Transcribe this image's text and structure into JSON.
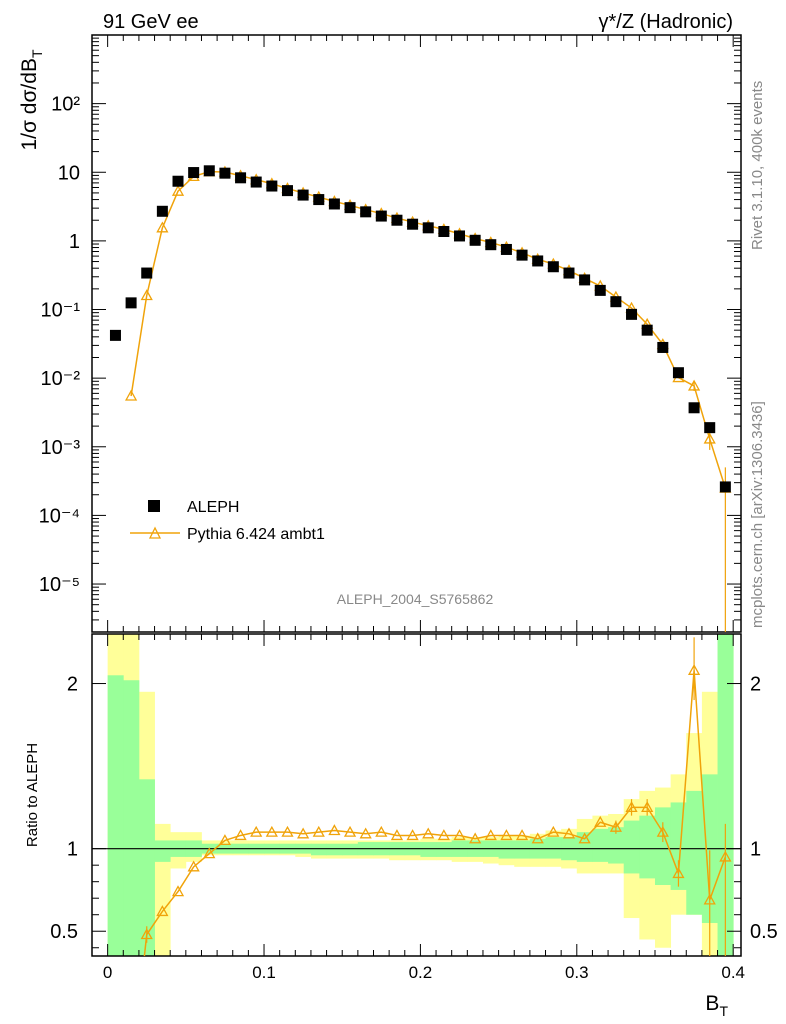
{
  "header": {
    "left_label": "91 GeV ee",
    "right_label": "γ*/Z (Hadronic)"
  },
  "side_text": {
    "rivet": "Rivet 3.1.10,  400k events",
    "mcplots": "mcplots.cern.ch [arXiv:1306.3436]"
  },
  "analysis_id": "ALEPH_2004_S5765862",
  "colors": {
    "data": "#000000",
    "mc": "#f0a30a",
    "band_inner": "#99ff99",
    "band_outer": "#ffff99"
  },
  "chart_data": [
    {
      "type": "scatter",
      "ylabel": "1/σ  dσ/dB_T",
      "yscale": "log",
      "xlim": [
        -0.01,
        0.405
      ],
      "ylim": [
        2e-06,
        1000
      ],
      "y_ticks": [
        "10⁻⁵",
        "10⁻⁴",
        "10⁻³",
        "10⁻²",
        "10⁻¹",
        "1",
        "10",
        "10²"
      ],
      "legend": {
        "placement": "bottom-left",
        "entries": [
          "ALEPH",
          "Pythia 6.424 ambt1"
        ]
      },
      "x": [
        0.005,
        0.015,
        0.025,
        0.035,
        0.045,
        0.055,
        0.065,
        0.075,
        0.085,
        0.095,
        0.105,
        0.115,
        0.125,
        0.135,
        0.145,
        0.155,
        0.165,
        0.175,
        0.185,
        0.195,
        0.205,
        0.215,
        0.225,
        0.235,
        0.245,
        0.255,
        0.265,
        0.275,
        0.285,
        0.295,
        0.305,
        0.315,
        0.325,
        0.335,
        0.345,
        0.355,
        0.365,
        0.375,
        0.385,
        0.395
      ],
      "series": [
        {
          "name": "ALEPH",
          "values": [
            0.042,
            0.125,
            0.34,
            2.7,
            7.4,
            9.9,
            10.5,
            9.7,
            8.3,
            7.2,
            6.3,
            5.4,
            4.65,
            4.0,
            3.45,
            3.05,
            2.65,
            2.3,
            2.0,
            1.75,
            1.55,
            1.37,
            1.18,
            1.02,
            0.88,
            0.75,
            0.62,
            0.51,
            0.42,
            0.34,
            0.27,
            0.19,
            0.13,
            0.085,
            0.05,
            0.028,
            0.012,
            0.0037,
            0.0019,
            0.00026
          ]
        },
        {
          "name": "Pythia 6.424 ambt1",
          "values": [
            null,
            0.0055,
            0.16,
            1.55,
            5.3,
            8.7,
            10.2,
            10.1,
            8.9,
            7.8,
            6.8,
            5.8,
            5.0,
            4.35,
            3.75,
            3.3,
            2.85,
            2.5,
            2.15,
            1.88,
            1.66,
            1.47,
            1.27,
            1.08,
            0.95,
            0.81,
            0.67,
            0.54,
            0.46,
            0.37,
            0.285,
            0.22,
            0.152,
            0.105,
            0.061,
            0.031,
            0.0102,
            0.0077,
            0.0013,
            0.00025
          ]
        }
      ]
    },
    {
      "type": "line",
      "xlabel": "B_T",
      "ylabel": "Ratio to ALEPH",
      "xlim": [
        -0.01,
        0.405
      ],
      "ylim": [
        0.35,
        2.3
      ],
      "x_ticks": [
        "0",
        "0.1",
        "0.2",
        "0.3",
        "0.4"
      ],
      "y_ticks": [
        "0.5",
        "1",
        "2"
      ],
      "bands": {
        "x_edges": [
          0.0,
          0.01,
          0.02,
          0.03,
          0.04,
          0.05,
          0.06,
          0.07,
          0.08,
          0.09,
          0.1,
          0.11,
          0.12,
          0.13,
          0.14,
          0.15,
          0.16,
          0.17,
          0.18,
          0.19,
          0.2,
          0.21,
          0.22,
          0.23,
          0.24,
          0.25,
          0.26,
          0.27,
          0.28,
          0.29,
          0.3,
          0.31,
          0.32,
          0.33,
          0.34,
          0.35,
          0.36,
          0.37,
          0.38,
          0.39,
          0.4
        ],
        "inner_lo": [
          0.35,
          0.35,
          0.35,
          0.92,
          0.95,
          0.95,
          0.97,
          0.97,
          0.97,
          0.97,
          0.97,
          0.97,
          0.97,
          0.96,
          0.96,
          0.96,
          0.96,
          0.96,
          0.96,
          0.96,
          0.95,
          0.95,
          0.95,
          0.95,
          0.95,
          0.94,
          0.94,
          0.94,
          0.94,
          0.93,
          0.92,
          0.92,
          0.91,
          0.85,
          0.82,
          0.78,
          0.75,
          0.6,
          0.55,
          0.35
        ],
        "inner_hi": [
          2.05,
          2.02,
          1.42,
          1.05,
          1.05,
          1.05,
          1.03,
          1.03,
          1.03,
          1.03,
          1.03,
          1.03,
          1.03,
          1.03,
          1.03,
          1.03,
          1.04,
          1.04,
          1.04,
          1.04,
          1.04,
          1.04,
          1.05,
          1.05,
          1.05,
          1.05,
          1.05,
          1.06,
          1.07,
          1.07,
          1.1,
          1.12,
          1.13,
          1.17,
          1.2,
          1.25,
          1.28,
          1.35,
          1.45,
          2.3
        ],
        "outer_lo": [
          0.35,
          0.35,
          0.35,
          0.35,
          0.88,
          0.92,
          0.96,
          0.96,
          0.96,
          0.96,
          0.96,
          0.96,
          0.95,
          0.94,
          0.94,
          0.94,
          0.94,
          0.94,
          0.93,
          0.93,
          0.93,
          0.93,
          0.92,
          0.92,
          0.91,
          0.9,
          0.89,
          0.89,
          0.89,
          0.88,
          0.85,
          0.85,
          0.85,
          0.58,
          0.45,
          0.4,
          0.6,
          0.6,
          0.35,
          0.35
        ],
        "outer_hi": [
          2.3,
          2.3,
          1.95,
          1.15,
          1.1,
          1.1,
          1.05,
          1.05,
          1.05,
          1.05,
          1.05,
          1.05,
          1.05,
          1.05,
          1.05,
          1.05,
          1.05,
          1.05,
          1.05,
          1.05,
          1.06,
          1.06,
          1.07,
          1.07,
          1.07,
          1.08,
          1.08,
          1.09,
          1.11,
          1.12,
          1.18,
          1.2,
          1.21,
          1.3,
          1.35,
          1.37,
          1.45,
          1.7,
          1.95,
          2.3
        ]
      },
      "series": [
        {
          "name": "Pythia 6.424 ambt1",
          "values": [
            null,
            null,
            0.48,
            0.62,
            0.74,
            0.89,
            0.97,
            1.05,
            1.08,
            1.1,
            1.1,
            1.1,
            1.09,
            1.1,
            1.11,
            1.1,
            1.09,
            1.1,
            1.08,
            1.08,
            1.09,
            1.08,
            1.08,
            1.06,
            1.08,
            1.08,
            1.08,
            1.06,
            1.1,
            1.09,
            1.06,
            1.16,
            1.13,
            1.25,
            1.25,
            1.1,
            0.85,
            2.08,
            0.69,
            0.95
          ]
        }
      ]
    }
  ]
}
